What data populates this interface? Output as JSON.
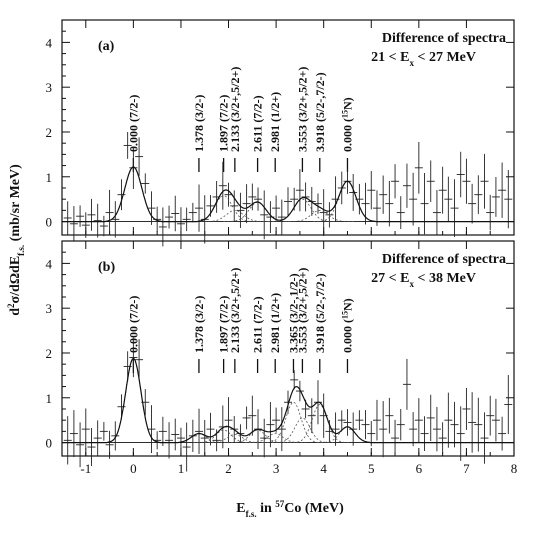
{
  "figure": {
    "ylabel_main": "d",
    "ylabel_sup": "2",
    "ylabel_rest": "σ/dΩdE",
    "ylabel_sub": "f.s.",
    "ylabel_units": " (mb/sr MeV)",
    "xlabel_main": "E",
    "xlabel_sub": "f.s.",
    "xlabel_mid": " in ",
    "xlabel_sup": "57",
    "xlabel_end": "Co (MeV)"
  },
  "chart_data": [
    {
      "type": "scatter",
      "panel_label": "(a)",
      "title_line1": "Difference of spectra",
      "title_line2_pre": "21 < E",
      "title_line2_sub": "x",
      "title_line2_post": " < 27 MeV",
      "xlim": [
        -1.5,
        8
      ],
      "ylim": [
        -0.3,
        4.5
      ],
      "x_ticks": [
        "-1",
        "0",
        "1",
        "2",
        "3",
        "4",
        "5",
        "6",
        "7",
        "8"
      ],
      "y_ticks": [
        "0",
        "1",
        "2",
        "3",
        "4"
      ],
      "annotations": [
        {
          "x": 0.0,
          "label": "0.000 (7/2-)"
        },
        {
          "x": 1.378,
          "label": "1.378 (3/2-)"
        },
        {
          "x": 1.897,
          "label": "1.897 (7/2-)"
        },
        {
          "x": 2.133,
          "label": "2.133 (3/2+,5/2+)"
        },
        {
          "x": 2.611,
          "label": "2.611 (7/2-)"
        },
        {
          "x": 2.981,
          "label": "2.981 (1/2+)"
        },
        {
          "x": 3.553,
          "label": "3.553 (3/2+,5/2+)"
        },
        {
          "x": 3.918,
          "label": "3.918 (5/2-,7/2-)"
        },
        {
          "x": 4.5,
          "label": "0.000 (",
          "sup": "15",
          "label_end": "N)"
        }
      ],
      "points": [
        [
          -1.38,
          0.08
        ],
        [
          -1.25,
          -0.05
        ],
        [
          -1.12,
          0.12
        ],
        [
          -1.0,
          -0.08
        ],
        [
          -0.88,
          0.15
        ],
        [
          -0.75,
          0.02
        ],
        [
          -0.62,
          -0.1
        ],
        [
          -0.5,
          0.2
        ],
        [
          -0.38,
          0.05
        ],
        [
          -0.25,
          0.6
        ],
        [
          -0.12,
          1.7
        ],
        [
          0.0,
          1.2
        ],
        [
          0.12,
          1.45
        ],
        [
          0.25,
          0.85
        ],
        [
          0.38,
          0.3
        ],
        [
          0.5,
          0.05
        ],
        [
          0.62,
          -0.12
        ],
        [
          0.75,
          0.1
        ],
        [
          0.88,
          0.18
        ],
        [
          1.0,
          -0.05
        ],
        [
          1.12,
          0.05
        ],
        [
          1.25,
          0.2
        ],
        [
          1.38,
          0.3
        ],
        [
          1.5,
          0.05
        ],
        [
          1.62,
          0.35
        ],
        [
          1.75,
          0.55
        ],
        [
          1.88,
          0.8
        ],
        [
          2.0,
          0.6
        ],
        [
          2.12,
          0.35
        ],
        [
          2.25,
          0.25
        ],
        [
          2.38,
          0.4
        ],
        [
          2.5,
          0.55
        ],
        [
          2.62,
          0.5
        ],
        [
          2.75,
          0.15
        ],
        [
          2.88,
          0.1
        ],
        [
          3.0,
          0.3
        ],
        [
          3.12,
          0.1
        ],
        [
          3.25,
          0.45
        ],
        [
          3.38,
          0.5
        ],
        [
          3.5,
          0.7
        ],
        [
          3.62,
          0.55
        ],
        [
          3.75,
          0.45
        ],
        [
          3.88,
          0.4
        ],
        [
          4.0,
          0.2
        ],
        [
          4.12,
          0.15
        ],
        [
          4.25,
          0.5
        ],
        [
          4.38,
          0.75
        ],
        [
          4.5,
          0.9
        ],
        [
          4.62,
          0.65
        ],
        [
          4.75,
          0.5
        ],
        [
          4.88,
          0.4
        ],
        [
          5.0,
          0.7
        ],
        [
          5.12,
          0.3
        ],
        [
          5.25,
          0.6
        ],
        [
          5.38,
          0.4
        ],
        [
          5.5,
          0.9
        ],
        [
          5.62,
          0.2
        ],
        [
          5.75,
          0.8
        ],
        [
          5.88,
          0.5
        ],
        [
          6.0,
          1.2
        ],
        [
          6.12,
          0.4
        ],
        [
          6.25,
          0.9
        ],
        [
          6.38,
          0.2
        ],
        [
          6.5,
          0.7
        ],
        [
          6.62,
          0.5
        ],
        [
          6.75,
          0.3
        ],
        [
          6.88,
          1.05
        ],
        [
          7.0,
          0.9
        ],
        [
          7.12,
          0.4
        ],
        [
          7.25,
          0.6
        ],
        [
          7.38,
          0.9
        ],
        [
          7.5,
          0.2
        ],
        [
          7.62,
          0.55
        ],
        [
          7.75,
          0.7
        ],
        [
          7.88,
          0.5
        ]
      ],
      "fit_peaks": [
        {
          "center": 0.0,
          "amp": 1.22
        },
        {
          "center": 1.897,
          "amp": 0.58
        },
        {
          "center": 2.133,
          "amp": 0.25
        },
        {
          "center": 2.611,
          "amp": 0.43
        },
        {
          "center": 3.553,
          "amp": 0.5
        },
        {
          "center": 3.918,
          "amp": 0.25
        },
        {
          "center": 4.5,
          "amp": 0.9
        }
      ],
      "fit_sigma": 0.18
    },
    {
      "type": "scatter",
      "panel_label": "(b)",
      "title_line1": "Difference of spectra",
      "title_line2_pre": "27 < E",
      "title_line2_sub": "x",
      "title_line2_post": " < 38 MeV",
      "xlim": [
        -1.5,
        8
      ],
      "ylim": [
        -0.3,
        4.5
      ],
      "x_ticks": [
        "-1",
        "0",
        "1",
        "2",
        "3",
        "4",
        "5",
        "6",
        "7",
        "8"
      ],
      "y_ticks": [
        "0",
        "1",
        "2",
        "3",
        "4"
      ],
      "annotations": [
        {
          "x": 0.0,
          "label": "0.000 (7/2-)"
        },
        {
          "x": 1.378,
          "label": "1.378 (3/2-)"
        },
        {
          "x": 1.897,
          "label": "1.897 (7/2-)"
        },
        {
          "x": 2.133,
          "label": "2.133 (3/2+,5/2+)"
        },
        {
          "x": 2.611,
          "label": "2.611 (7/2-)"
        },
        {
          "x": 2.981,
          "label": "2.981 (1/2+)"
        },
        {
          "x": 3.365,
          "label": "3.365 (3/2-,1/2-)"
        },
        {
          "x": 3.553,
          "label": "3.553 (3/2+,5/2+)"
        },
        {
          "x": 3.918,
          "label": "3.918 (5/2-,7/2-)"
        },
        {
          "x": 4.5,
          "label": "0.000 (",
          "sup": "15",
          "label_end": "N)"
        }
      ],
      "points": [
        [
          -1.38,
          0.05
        ],
        [
          -1.25,
          0.2
        ],
        [
          -1.12,
          -0.05
        ],
        [
          -1.0,
          0.3
        ],
        [
          -0.88,
          -0.1
        ],
        [
          -0.75,
          0.1
        ],
        [
          -0.62,
          0.25
        ],
        [
          -0.5,
          -0.05
        ],
        [
          -0.38,
          0.15
        ],
        [
          -0.25,
          0.8
        ],
        [
          -0.12,
          1.7
        ],
        [
          0.0,
          1.9
        ],
        [
          0.12,
          1.85
        ],
        [
          0.25,
          0.9
        ],
        [
          0.38,
          0.3
        ],
        [
          0.5,
          0.05
        ],
        [
          0.62,
          0.25
        ],
        [
          0.75,
          0.05
        ],
        [
          0.88,
          0.18
        ],
        [
          1.0,
          0.1
        ],
        [
          1.12,
          -0.1
        ],
        [
          1.25,
          0.15
        ],
        [
          1.38,
          0.25
        ],
        [
          1.5,
          0.1
        ],
        [
          1.62,
          0.3
        ],
        [
          1.75,
          0.05
        ],
        [
          1.88,
          0.35
        ],
        [
          2.0,
          0.5
        ],
        [
          2.12,
          0.3
        ],
        [
          2.25,
          0.2
        ],
        [
          2.38,
          0.55
        ],
        [
          2.5,
          0.6
        ],
        [
          2.62,
          0.3
        ],
        [
          2.75,
          0.1
        ],
        [
          2.88,
          0.4
        ],
        [
          3.0,
          0.5
        ],
        [
          3.12,
          0.3
        ],
        [
          3.25,
          0.9
        ],
        [
          3.38,
          1.4
        ],
        [
          3.5,
          1.15
        ],
        [
          3.62,
          0.75
        ],
        [
          3.75,
          0.6
        ],
        [
          3.88,
          0.9
        ],
        [
          4.0,
          0.6
        ],
        [
          4.12,
          0.25
        ],
        [
          4.25,
          0.3
        ],
        [
          4.38,
          0.5
        ],
        [
          4.5,
          0.45
        ],
        [
          4.62,
          0.3
        ],
        [
          4.75,
          0.5
        ],
        [
          4.88,
          0.4
        ],
        [
          5.0,
          0.2
        ],
        [
          5.12,
          0.5
        ],
        [
          5.25,
          0.3
        ],
        [
          5.38,
          0.6
        ],
        [
          5.5,
          0.1
        ],
        [
          5.62,
          0.4
        ],
        [
          5.75,
          1.3
        ],
        [
          5.88,
          0.3
        ],
        [
          6.0,
          0.5
        ],
        [
          6.12,
          0.2
        ],
        [
          6.25,
          0.55
        ],
        [
          6.38,
          0.3
        ],
        [
          6.5,
          0.1
        ],
        [
          6.62,
          0.5
        ],
        [
          6.75,
          0.4
        ],
        [
          6.88,
          0.2
        ],
        [
          7.0,
          0.75
        ],
        [
          7.12,
          0.45
        ],
        [
          7.25,
          0.4
        ],
        [
          7.38,
          0.1
        ],
        [
          7.5,
          0.6
        ],
        [
          7.62,
          0.5
        ],
        [
          7.75,
          0.2
        ],
        [
          7.88,
          0.85
        ]
      ],
      "fit_peaks": [
        {
          "center": 0.0,
          "amp": 1.88
        },
        {
          "center": 1.378,
          "amp": 0.2
        },
        {
          "center": 1.897,
          "amp": 0.28
        },
        {
          "center": 2.133,
          "amp": 0.18
        },
        {
          "center": 2.611,
          "amp": 0.28
        },
        {
          "center": 2.981,
          "amp": 0.2
        },
        {
          "center": 3.365,
          "amp": 0.9
        },
        {
          "center": 3.553,
          "amp": 0.55
        },
        {
          "center": 3.918,
          "amp": 0.85
        },
        {
          "center": 4.5,
          "amp": 0.35
        }
      ],
      "fit_sigma": 0.16
    }
  ]
}
